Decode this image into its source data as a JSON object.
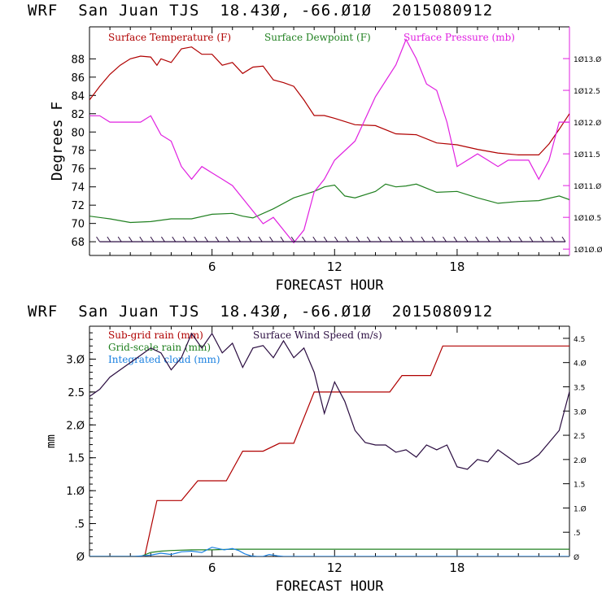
{
  "colors": {
    "temperature": "#b00000",
    "dewpoint": "#208020",
    "pressure": "#e020e0",
    "subgrid": "#b00000",
    "gridscale": "#208020",
    "cloud": "#1a80e0",
    "wind": "#2a0c40",
    "axis": "#000000"
  },
  "chart_data": [
    {
      "type": "line",
      "title": "WRF  San Juan TJS  18.43Ø, -66.Ø1Ø  2015080912",
      "xlabel": "FORECAST HOUR",
      "ylabel": "Degrees F",
      "xlim": [
        0,
        23.5
      ],
      "ylim": [
        66.5,
        91.5
      ],
      "ylim_right": [
        1009.9,
        1013.5
      ],
      "x_ticks": [
        6,
        12,
        18
      ],
      "y_ticks": [
        68,
        70,
        72,
        74,
        76,
        78,
        80,
        82,
        84,
        86,
        88
      ],
      "y_ticks_right": [
        1010.0,
        1010.5,
        1011.0,
        1011.5,
        1012.0,
        1012.5,
        1013.0
      ],
      "y_tick_labels_right": [
        "1Ø1Ø.Ø",
        "1Ø1Ø.5",
        "1Ø11.Ø",
        "1Ø11.5",
        "1Ø12.Ø",
        "1Ø12.5",
        "1Ø13.Ø"
      ],
      "legend_position": "top",
      "series": [
        {
          "name": "Surface Temperature (F)",
          "axis": "left",
          "color": "temperature",
          "x": [
            0,
            0.5,
            1,
            1.5,
            2,
            2.5,
            3,
            3.3,
            3.5,
            4,
            4.5,
            5,
            5.5,
            6,
            6.5,
            7,
            7.5,
            8,
            8.5,
            9,
            9.5,
            10,
            10.5,
            11,
            11.5,
            12,
            13,
            14,
            15,
            16,
            17,
            18,
            19,
            20,
            21,
            22,
            22.5,
            23,
            23.5
          ],
          "y": [
            83.5,
            85,
            86.3,
            87.3,
            88,
            88.3,
            88.2,
            87.3,
            88,
            87.6,
            89.1,
            89.3,
            88.5,
            88.5,
            87.3,
            87.6,
            86.4,
            87.1,
            87.2,
            85.7,
            85.4,
            85,
            83.5,
            81.8,
            81.8,
            81.5,
            80.8,
            80.7,
            79.8,
            79.7,
            78.8,
            78.6,
            78.1,
            77.7,
            77.5,
            77.5,
            78.7,
            80.3,
            82
          ]
        },
        {
          "name": "Surface Dewpoint (F)",
          "axis": "left",
          "color": "dewpoint",
          "x": [
            0,
            1,
            2,
            3,
            4,
            5,
            6,
            7,
            7.5,
            8,
            9,
            10,
            11,
            11.5,
            12,
            12.5,
            13,
            14,
            14.5,
            15,
            15.5,
            16,
            17,
            18,
            19,
            20,
            21,
            22,
            23,
            23.5
          ],
          "y": [
            70.8,
            70.5,
            70.1,
            70.2,
            70.5,
            70.5,
            71,
            71.1,
            70.8,
            70.6,
            71.6,
            72.8,
            73.5,
            74,
            74.2,
            73,
            72.8,
            73.5,
            74.3,
            74,
            74.1,
            74.3,
            73.4,
            73.5,
            72.8,
            72.2,
            72.4,
            72.5,
            73,
            72.6
          ]
        },
        {
          "name": "Surface Pressure (mb)",
          "axis": "right",
          "color": "pressure",
          "x": [
            0,
            0.5,
            1,
            1.5,
            2,
            2.5,
            3,
            3.5,
            4,
            4.5,
            5,
            5.5,
            6,
            6.5,
            7,
            7.5,
            8,
            8.5,
            9,
            9.5,
            10,
            10.5,
            11,
            11.5,
            12,
            13,
            14,
            15,
            15.5,
            16,
            16.5,
            17,
            17.5,
            18,
            18.5,
            19,
            19.5,
            20,
            20.5,
            21,
            21.5,
            22,
            22.5,
            23,
            23.5
          ],
          "y": [
            1012.1,
            1012.1,
            1012.0,
            1012.0,
            1012.0,
            1012.0,
            1012.1,
            1011.8,
            1011.7,
            1011.3,
            1011.1,
            1011.3,
            1011.2,
            1011.1,
            1011.0,
            1010.8,
            1010.6,
            1010.4,
            1010.5,
            1010.3,
            1010.1,
            1010.3,
            1010.9,
            1011.1,
            1011.4,
            1011.7,
            1012.4,
            1012.9,
            1013.3,
            1013.0,
            1012.6,
            1012.5,
            1012.0,
            1011.3,
            1011.4,
            1011.5,
            1011.4,
            1011.3,
            1011.4,
            1011.4,
            1011.4,
            1011.1,
            1011.4,
            1012.0,
            1012.0
          ]
        }
      ],
      "wind_barbs": {
        "y": 68,
        "x_start": 0.5,
        "x_end": 23.3,
        "count": 44
      }
    },
    {
      "type": "line",
      "title": "WRF  San Juan TJS  18.43Ø, -66.Ø1Ø  2015080912",
      "xlabel": "FORECAST HOUR",
      "ylabel": "mm",
      "xlim": [
        0,
        23.5
      ],
      "ylim": [
        0,
        3.5
      ],
      "ylim_right": [
        0,
        4.75
      ],
      "x_ticks": [
        6,
        12,
        18
      ],
      "y_ticks": [
        0,
        0.5,
        1.0,
        1.5,
        2.0,
        2.5,
        3.0
      ],
      "y_tick_labels": [
        "Ø",
        ".5",
        "1.Ø",
        "1.5",
        "2.Ø",
        "2.5",
        "3.Ø"
      ],
      "y_ticks_right": [
        0,
        0.5,
        1.0,
        1.5,
        2.0,
        2.5,
        3.0,
        3.5,
        4.0,
        4.5
      ],
      "y_tick_labels_right": [
        "Ø",
        ".5",
        "1.Ø",
        "1.5",
        "2.Ø",
        "2.5",
        "3.Ø",
        "3.5",
        "4.Ø",
        "4.5"
      ],
      "legend_position": "top-left",
      "series": [
        {
          "name": "Sub-grid rain (mm)",
          "axis": "left",
          "color": "subgrid",
          "x": [
            0,
            2.7,
            3.3,
            4.5,
            5.3,
            6.7,
            7.5,
            8.5,
            9.3,
            10,
            11,
            12,
            13,
            14,
            14.7,
            15.3,
            16,
            16.7,
            17.3,
            18,
            19,
            20,
            21,
            22,
            23,
            23.5
          ],
          "y": [
            0,
            0,
            0.85,
            0.85,
            1.15,
            1.15,
            1.6,
            1.6,
            1.72,
            1.72,
            2.5,
            2.5,
            2.5,
            2.5,
            2.5,
            2.75,
            2.75,
            2.75,
            3.2,
            3.2,
            3.2,
            3.2,
            3.2,
            3.2,
            3.2,
            3.2
          ]
        },
        {
          "name": "Grid-scale rain (mm)",
          "axis": "left",
          "color": "gridscale",
          "x": [
            0,
            2.5,
            3,
            3.5,
            4,
            5,
            6,
            7,
            8,
            10,
            12,
            14,
            16,
            18,
            20,
            22,
            23.5
          ],
          "y": [
            0,
            0,
            0.06,
            0.08,
            0.09,
            0.1,
            0.1,
            0.11,
            0.11,
            0.11,
            0.11,
            0.11,
            0.11,
            0.11,
            0.11,
            0.11,
            0.11
          ]
        },
        {
          "name": "Integrated cloud (mm)",
          "axis": "left",
          "color": "cloud",
          "x": [
            0,
            2.2,
            2.6,
            3,
            3.5,
            4,
            4.5,
            5,
            5.5,
            6,
            6.3,
            6.6,
            7,
            7.3,
            7.6,
            7.9,
            8.2,
            8.5,
            8.8,
            9.2,
            9.5,
            23.5
          ],
          "y": [
            0,
            0,
            0.01,
            0.02,
            0.05,
            0.03,
            0.07,
            0.08,
            0.06,
            0.14,
            0.12,
            0.1,
            0.12,
            0.09,
            0.04,
            0.01,
            0.0,
            0.0,
            0.03,
            0.01,
            0,
            0
          ]
        },
        {
          "name": "Surface Wind Speed (m/s)",
          "axis": "right",
          "color": "wind",
          "x": [
            0,
            0.5,
            1,
            1.5,
            2,
            2.5,
            3,
            3.5,
            4,
            4.5,
            5,
            5.5,
            6,
            6.5,
            7,
            7.5,
            8,
            8.5,
            9,
            9.5,
            10,
            10.5,
            11,
            11.5,
            12,
            12.5,
            13,
            13.5,
            14,
            14.5,
            15,
            15.5,
            16,
            16.5,
            17,
            17.5,
            18,
            18.5,
            19,
            19.5,
            20,
            20.5,
            21,
            21.5,
            22,
            22.5,
            23,
            23.5
          ],
          "y": [
            3.3,
            3.45,
            3.7,
            3.85,
            4.0,
            4.15,
            4.3,
            4.2,
            3.85,
            4.1,
            4.6,
            4.3,
            4.6,
            4.2,
            4.4,
            3.9,
            4.3,
            4.35,
            4.1,
            4.45,
            4.1,
            4.3,
            3.8,
            2.95,
            3.6,
            3.2,
            2.6,
            2.35,
            2.3,
            2.3,
            2.15,
            2.2,
            2.05,
            2.3,
            2.2,
            2.3,
            1.85,
            1.8,
            2.0,
            1.95,
            2.2,
            2.05,
            1.9,
            1.95,
            2.1,
            2.35,
            2.6,
            3.4
          ]
        }
      ]
    }
  ]
}
